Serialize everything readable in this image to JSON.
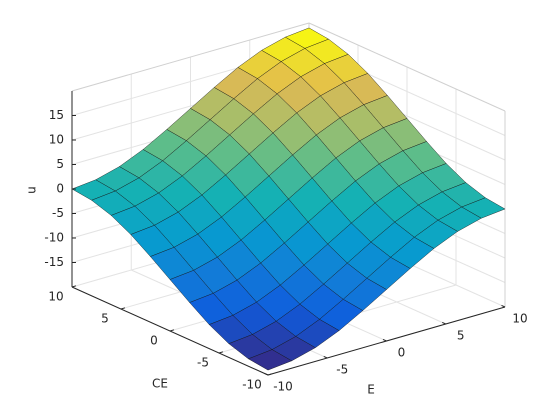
{
  "chart_data": {
    "type": "surface",
    "xlabel": "E",
    "ylabel": "CE",
    "zlabel": "u",
    "x": [
      -10,
      -8,
      -6,
      -4,
      -2,
      0,
      2,
      4,
      6,
      8,
      10
    ],
    "y": [
      -10,
      -8,
      -6,
      -4,
      -2,
      0,
      2,
      4,
      6,
      8,
      10
    ],
    "z": [
      [
        -19,
        -18.5,
        -17.2,
        -15.1,
        -12.4,
        -9.5,
        -6.6,
        -3.9,
        -1.8,
        -0.5,
        0
      ],
      [
        -18.5,
        -18,
        -16.7,
        -14.6,
        -11.9,
        -9,
        -6.1,
        -3.4,
        -1.3,
        0,
        0.5
      ],
      [
        -17.2,
        -16.7,
        -15.4,
        -13.3,
        -10.6,
        -7.7,
        -4.8,
        -2.1,
        0,
        1.3,
        1.8
      ],
      [
        -15.1,
        -14.6,
        -13.3,
        -11.2,
        -8.5,
        -5.6,
        -2.7,
        0,
        2.1,
        3.4,
        3.9
      ],
      [
        -12.4,
        -11.9,
        -10.6,
        -8.5,
        -5.8,
        -2.9,
        0,
        2.7,
        4.8,
        6.1,
        6.6
      ],
      [
        -9.5,
        -9,
        -7.7,
        -5.6,
        -2.9,
        0,
        2.9,
        5.6,
        7.7,
        9,
        9.5
      ],
      [
        -6.6,
        -6.1,
        -4.8,
        -2.7,
        0,
        2.9,
        5.8,
        8.5,
        10.6,
        11.9,
        12.4
      ],
      [
        -3.9,
        -3.4,
        -2.1,
        0,
        2.7,
        5.6,
        8.5,
        11.2,
        13.3,
        14.6,
        15.1
      ],
      [
        -1.8,
        -1.3,
        0,
        2.1,
        4.8,
        7.7,
        10.6,
        13.3,
        15.4,
        16.7,
        17.2
      ],
      [
        -0.5,
        0,
        1.3,
        3.4,
        6.1,
        9,
        11.9,
        14.6,
        16.7,
        18,
        18.5
      ],
      [
        0,
        0.5,
        1.8,
        3.9,
        6.6,
        9.5,
        12.4,
        15.1,
        17.2,
        18.5,
        19
      ]
    ],
    "xlim": [
      -10,
      10
    ],
    "ylim": [
      -10,
      10
    ],
    "zlim": [
      -20,
      20
    ],
    "xticks": [
      -10,
      -5,
      0,
      5,
      10
    ],
    "yticks": [
      -10,
      -5,
      0,
      5,
      10
    ],
    "zticks": [
      -15,
      -10,
      -5,
      0,
      5,
      10,
      15
    ],
    "grid": true,
    "colormap": "parula"
  }
}
